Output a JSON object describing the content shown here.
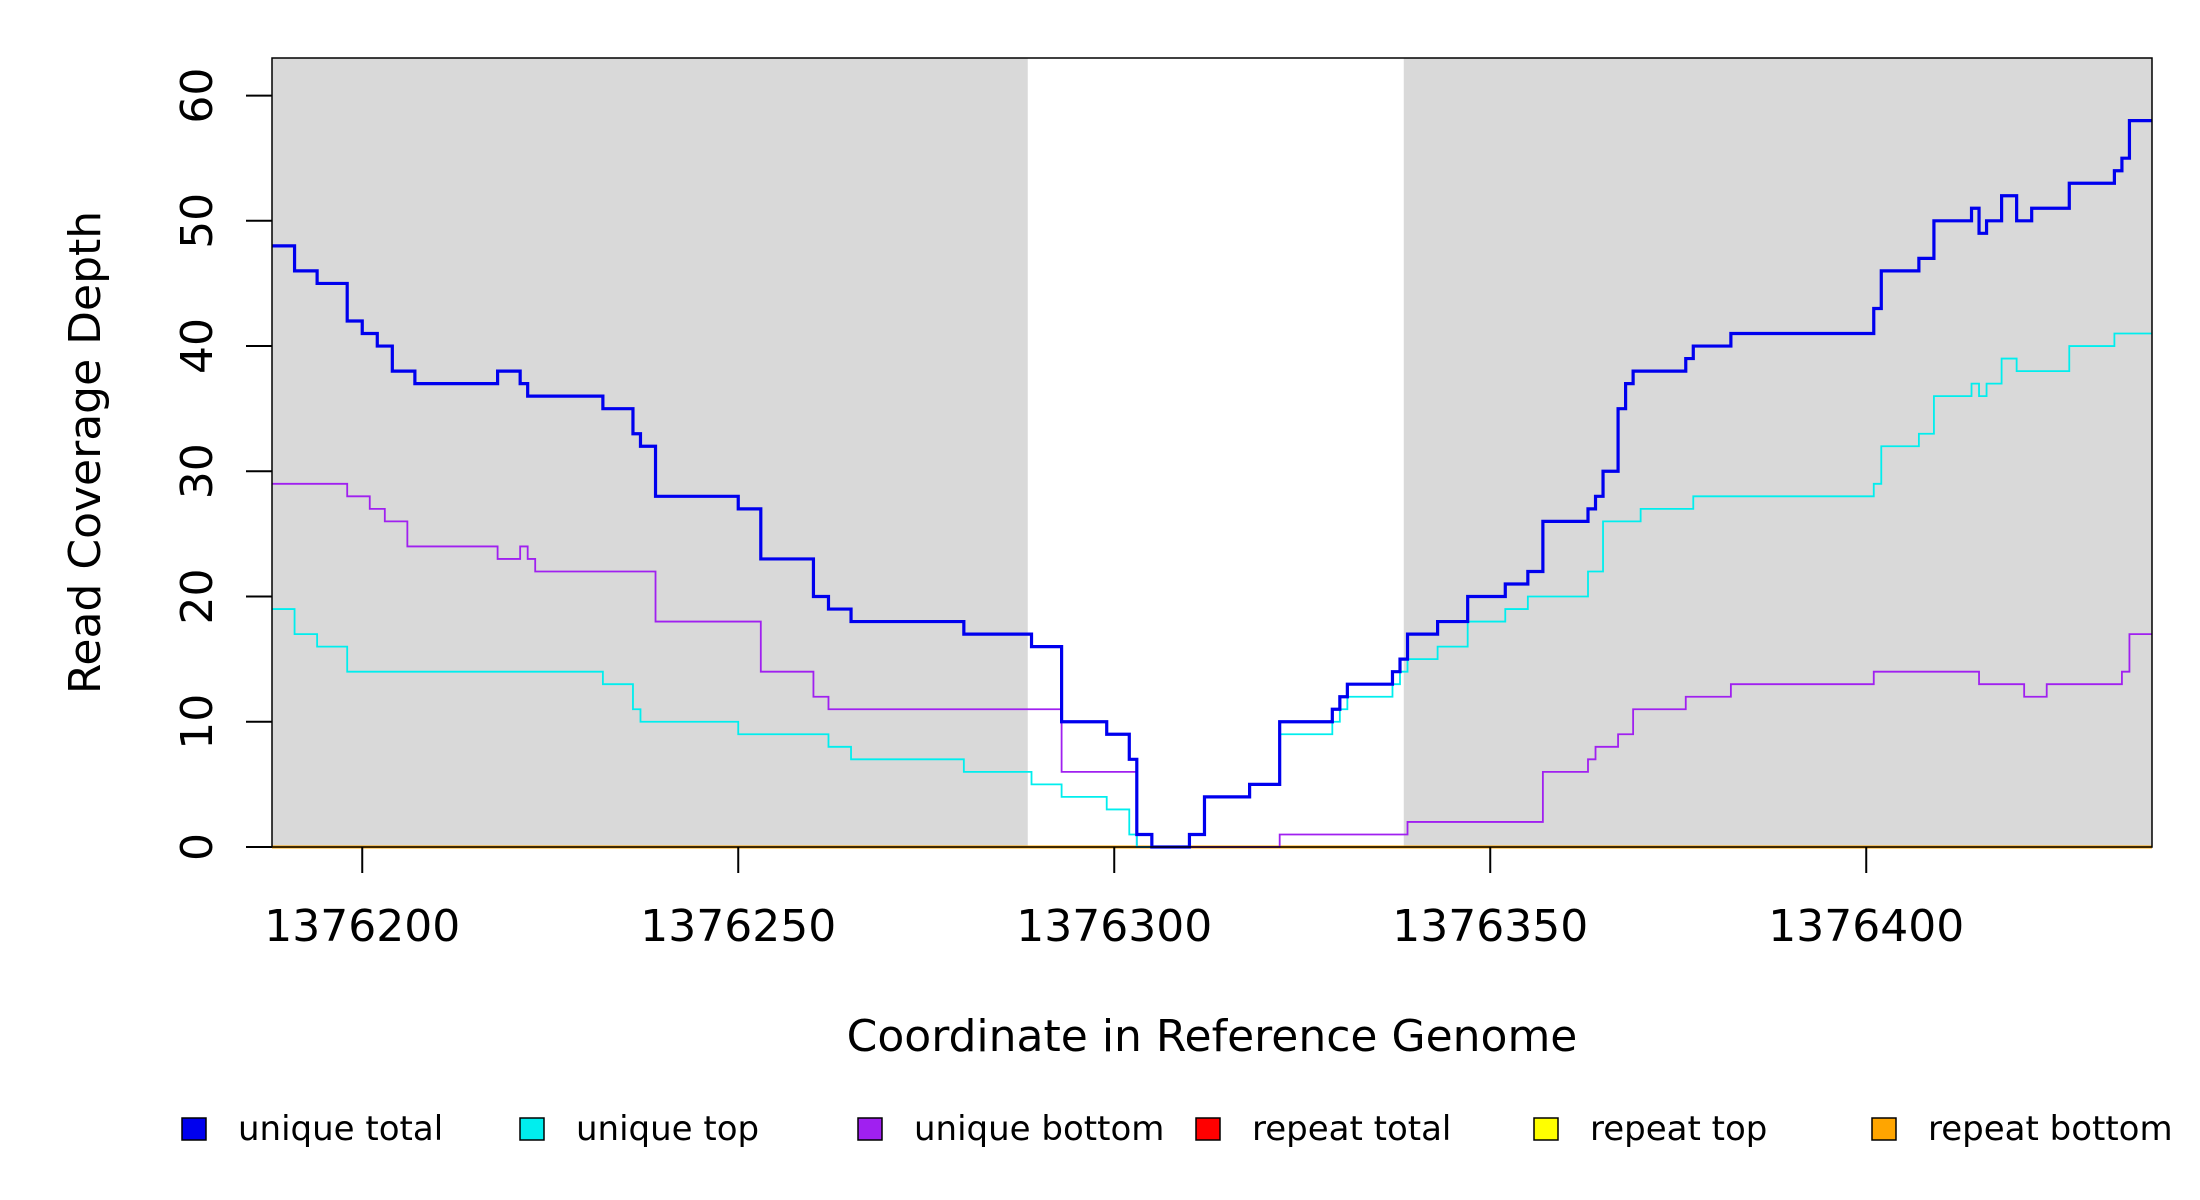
{
  "chart_data": {
    "type": "line",
    "step": true,
    "xlabel": "Coordinate in Reference Genome",
    "ylabel": "Read Coverage Depth",
    "xlim": [
      1376188,
      1376438
    ],
    "ylim": [
      0,
      63
    ],
    "x_ticks": [
      1376200,
      1376250,
      1376300,
      1376350,
      1376400
    ],
    "x_tick_labels": [
      "1376200",
      "1376250",
      "1376300",
      "1376350",
      "1376400"
    ],
    "y_ticks": [
      0,
      10,
      20,
      30,
      40,
      50,
      60
    ],
    "y_tick_labels": [
      "0",
      "10",
      "20",
      "30",
      "40",
      "50",
      "60"
    ],
    "shaded_regions": [
      {
        "from": 1376188,
        "to": 1376288.5,
        "color": "#d9d9d9"
      },
      {
        "from": 1376338.5,
        "to": 1376438,
        "color": "#d9d9d9"
      }
    ],
    "legend_position": "bottom",
    "series": [
      {
        "name": "unique total",
        "color": "#0000ee",
        "x": [
          1376188,
          1376191,
          1376194,
          1376198,
          1376200,
          1376202,
          1376204,
          1376207,
          1376218,
          1376221,
          1376222,
          1376223,
          1376232,
          1376236,
          1376237,
          1376239,
          1376250,
          1376253,
          1376260,
          1376262,
          1376265,
          1376280,
          1376289,
          1376293,
          1376299,
          1376302,
          1376303,
          1376305,
          1376310,
          1376312,
          1376318,
          1376322,
          1376329,
          1376330,
          1376331,
          1376333,
          1376337,
          1376338,
          1376339,
          1376343,
          1376347,
          1376352,
          1376355,
          1376357,
          1376363,
          1376364,
          1376365,
          1376367,
          1376368,
          1376369,
          1376376,
          1376377,
          1376382,
          1376401,
          1376402,
          1376407,
          1376409,
          1376414,
          1376415,
          1376416,
          1376418,
          1376420,
          1376422,
          1376427,
          1376433,
          1376434,
          1376435,
          1376438
        ],
        "y": [
          48,
          46,
          45,
          42,
          41,
          40,
          38,
          37,
          38,
          37,
          36,
          36,
          35,
          33,
          32,
          28,
          27,
          23,
          20,
          19,
          18,
          17,
          16,
          10,
          9,
          7,
          1,
          0,
          1,
          4,
          5,
          10,
          11,
          12,
          13,
          13,
          14,
          15,
          17,
          18,
          20,
          21,
          22,
          26,
          27,
          28,
          30,
          35,
          37,
          38,
          39,
          40,
          41,
          43,
          46,
          47,
          50,
          51,
          49,
          50,
          52,
          50,
          51,
          53,
          54,
          55,
          58,
          58
        ]
      },
      {
        "name": "unique top",
        "color": "#00eeee",
        "x": [
          1376188,
          1376191,
          1376194,
          1376198,
          1376232,
          1376236,
          1376237,
          1376250,
          1376262,
          1376265,
          1376280,
          1376289,
          1376293,
          1376299,
          1376302,
          1376303,
          1376305,
          1376310,
          1376312,
          1376318,
          1376322,
          1376329,
          1376330,
          1376331,
          1376337,
          1376338,
          1376339,
          1376343,
          1376347,
          1376352,
          1376355,
          1376363,
          1376365,
          1376370,
          1376377,
          1376401,
          1376402,
          1376407,
          1376409,
          1376414,
          1376415,
          1376416,
          1376418,
          1376420,
          1376422,
          1376427,
          1376433,
          1376438
        ],
        "y": [
          19,
          17,
          16,
          14,
          13,
          11,
          10,
          9,
          8,
          7,
          6,
          5,
          4,
          3,
          1,
          0,
          0,
          1,
          4,
          5,
          9,
          10,
          11,
          12,
          13,
          14,
          15,
          16,
          18,
          19,
          20,
          22,
          26,
          27,
          28,
          29,
          32,
          33,
          36,
          37,
          36,
          37,
          39,
          38,
          38,
          40,
          41,
          41
        ]
      },
      {
        "name": "unique bottom",
        "color": "#a020f0",
        "x": [
          1376188,
          1376198,
          1376201,
          1376203,
          1376206,
          1376218,
          1376221,
          1376222,
          1376223,
          1376239,
          1376253,
          1376260,
          1376262,
          1376293,
          1376303,
          1376322,
          1376339,
          1376357,
          1376363,
          1376364,
          1376365,
          1376367,
          1376369,
          1376376,
          1376382,
          1376401,
          1376415,
          1376421,
          1376424,
          1376434,
          1376435,
          1376438
        ],
        "y": [
          29,
          28,
          27,
          26,
          24,
          23,
          24,
          23,
          22,
          18,
          14,
          12,
          11,
          6,
          0,
          1,
          2,
          6,
          7,
          8,
          8,
          9,
          11,
          12,
          13,
          14,
          13,
          12,
          13,
          14,
          17,
          17
        ]
      },
      {
        "name": "repeat total",
        "color": "#ff0000",
        "x": [
          1376188,
          1376438
        ],
        "y": [
          0,
          0
        ]
      },
      {
        "name": "repeat top",
        "color": "#ffff00",
        "x": [
          1376188,
          1376438
        ],
        "y": [
          0,
          0
        ]
      },
      {
        "name": "repeat bottom",
        "color": "#ffa500",
        "x": [
          1376188,
          1376438
        ],
        "y": [
          0,
          0
        ]
      }
    ]
  }
}
